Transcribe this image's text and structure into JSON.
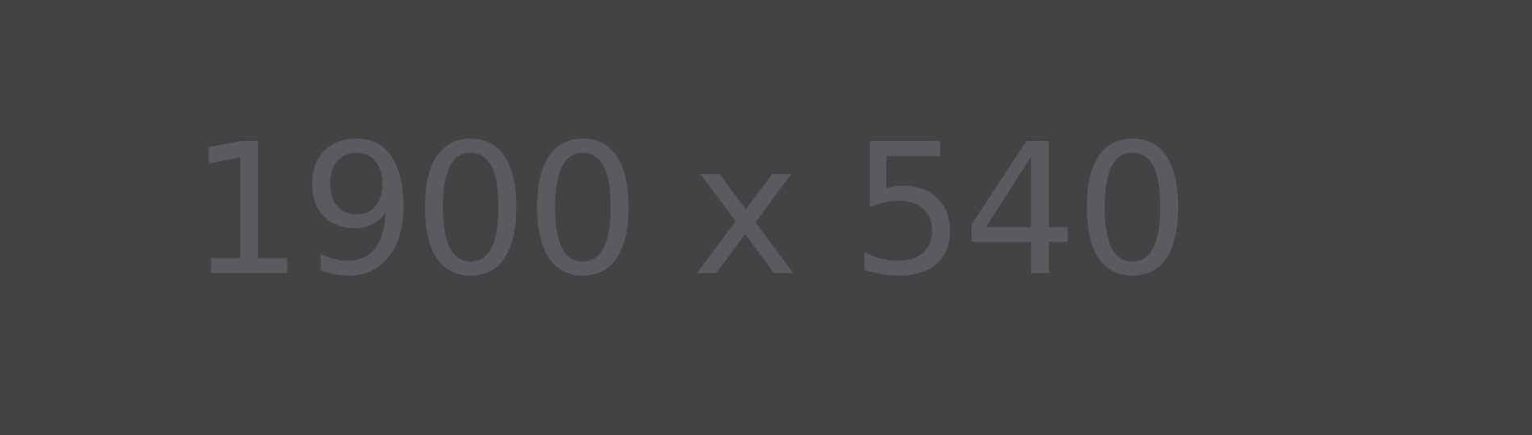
{
  "placeholder": {
    "text": "1900 x 540",
    "background_color": "#444243",
    "text_color": "#5b5a60"
  }
}
